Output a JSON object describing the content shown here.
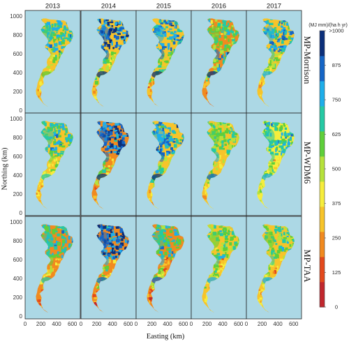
{
  "columns": [
    "2013",
    "2014",
    "2015",
    "2016",
    "2017"
  ],
  "rows": [
    "MP-Morrison",
    "MP-WDM6",
    "MP-TAA"
  ],
  "x_axis": {
    "label": "Easting (km)",
    "ticks": [
      "0",
      "200",
      "400",
      "600"
    ],
    "range_km": [
      0,
      700
    ]
  },
  "y_axis": {
    "label": "Northing (km)",
    "ticks": [
      "0",
      "200",
      "400",
      "600",
      "800",
      "1000"
    ],
    "range_km": [
      -30,
      1060
    ]
  },
  "colorbar": {
    "unit": "(MJ mm)/(ha h yr)",
    "labels": [
      "0",
      "125",
      "250",
      "375",
      "500",
      "625",
      "750",
      "875",
      ">1000"
    ],
    "colors": [
      "#c1272d",
      "#e3491c",
      "#f18a1f",
      "#f7c42a",
      "#f6ed3c",
      "#b6e23b",
      "#5ecf3a",
      "#25c9a4",
      "#1eaeea",
      "#1565c6",
      "#0b2f7a"
    ]
  },
  "ocean_color": "#acd8e5",
  "panel_levels": [
    [
      {
        "s": 3,
        "n": 7,
        "e": 6,
        "w": 5
      },
      {
        "s": 3,
        "n": 9,
        "e": 5,
        "w": 9
      },
      {
        "s": 3,
        "n": 8,
        "e": 6,
        "w": 9
      },
      {
        "s": 2,
        "n": 6,
        "e": 8,
        "w": 9
      },
      {
        "s": 3,
        "n": 8,
        "e": 5,
        "w": 7
      }
    ],
    [
      {
        "s": 3,
        "n": 7,
        "e": 5,
        "w": 6
      },
      {
        "s": 2,
        "n": 9,
        "e": 4,
        "w": 9
      },
      {
        "s": 3,
        "n": 8,
        "e": 4,
        "w": 9
      },
      {
        "s": 3,
        "n": 6,
        "e": 4,
        "w": 8
      },
      {
        "s": 4,
        "n": 7,
        "e": 4,
        "w": 7
      }
    ],
    [
      {
        "s": 2,
        "n": 7,
        "e": 3,
        "w": 6
      },
      {
        "s": 2,
        "n": 9,
        "e": 3,
        "w": 8
      },
      {
        "s": 2,
        "n": 7,
        "e": 2,
        "w": 8
      },
      {
        "s": 3,
        "n": 6,
        "e": 3,
        "w": 7
      },
      {
        "s": 3,
        "n": 6,
        "e": 3,
        "w": 7
      }
    ]
  ]
}
